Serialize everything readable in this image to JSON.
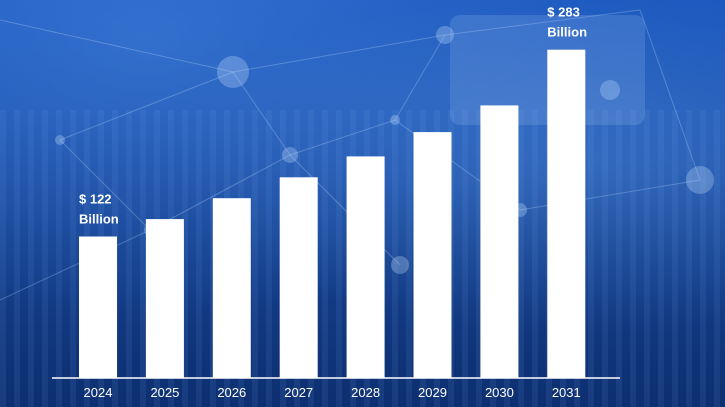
{
  "colors": {
    "background": "#1a4ea6",
    "bar": "#ffffff",
    "text": "#ffffff",
    "axis": "#ffffff"
  },
  "chart_data": {
    "type": "bar",
    "title": "",
    "xlabel": "",
    "ylabel": "",
    "categories": [
      "2024",
      "2025",
      "2026",
      "2027",
      "2028",
      "2029",
      "2030",
      "2031"
    ],
    "values": [
      122,
      137,
      155,
      173,
      191,
      212,
      235,
      283
    ],
    "ylim": [
      0,
      300
    ],
    "grid": false,
    "legend": "none",
    "unit": "Billion",
    "annotations": [
      {
        "category": "2024",
        "label": "$ 122",
        "sublabel": "Billion"
      },
      {
        "category": "2031",
        "label": "$ 283",
        "sublabel": "Billion"
      }
    ]
  }
}
